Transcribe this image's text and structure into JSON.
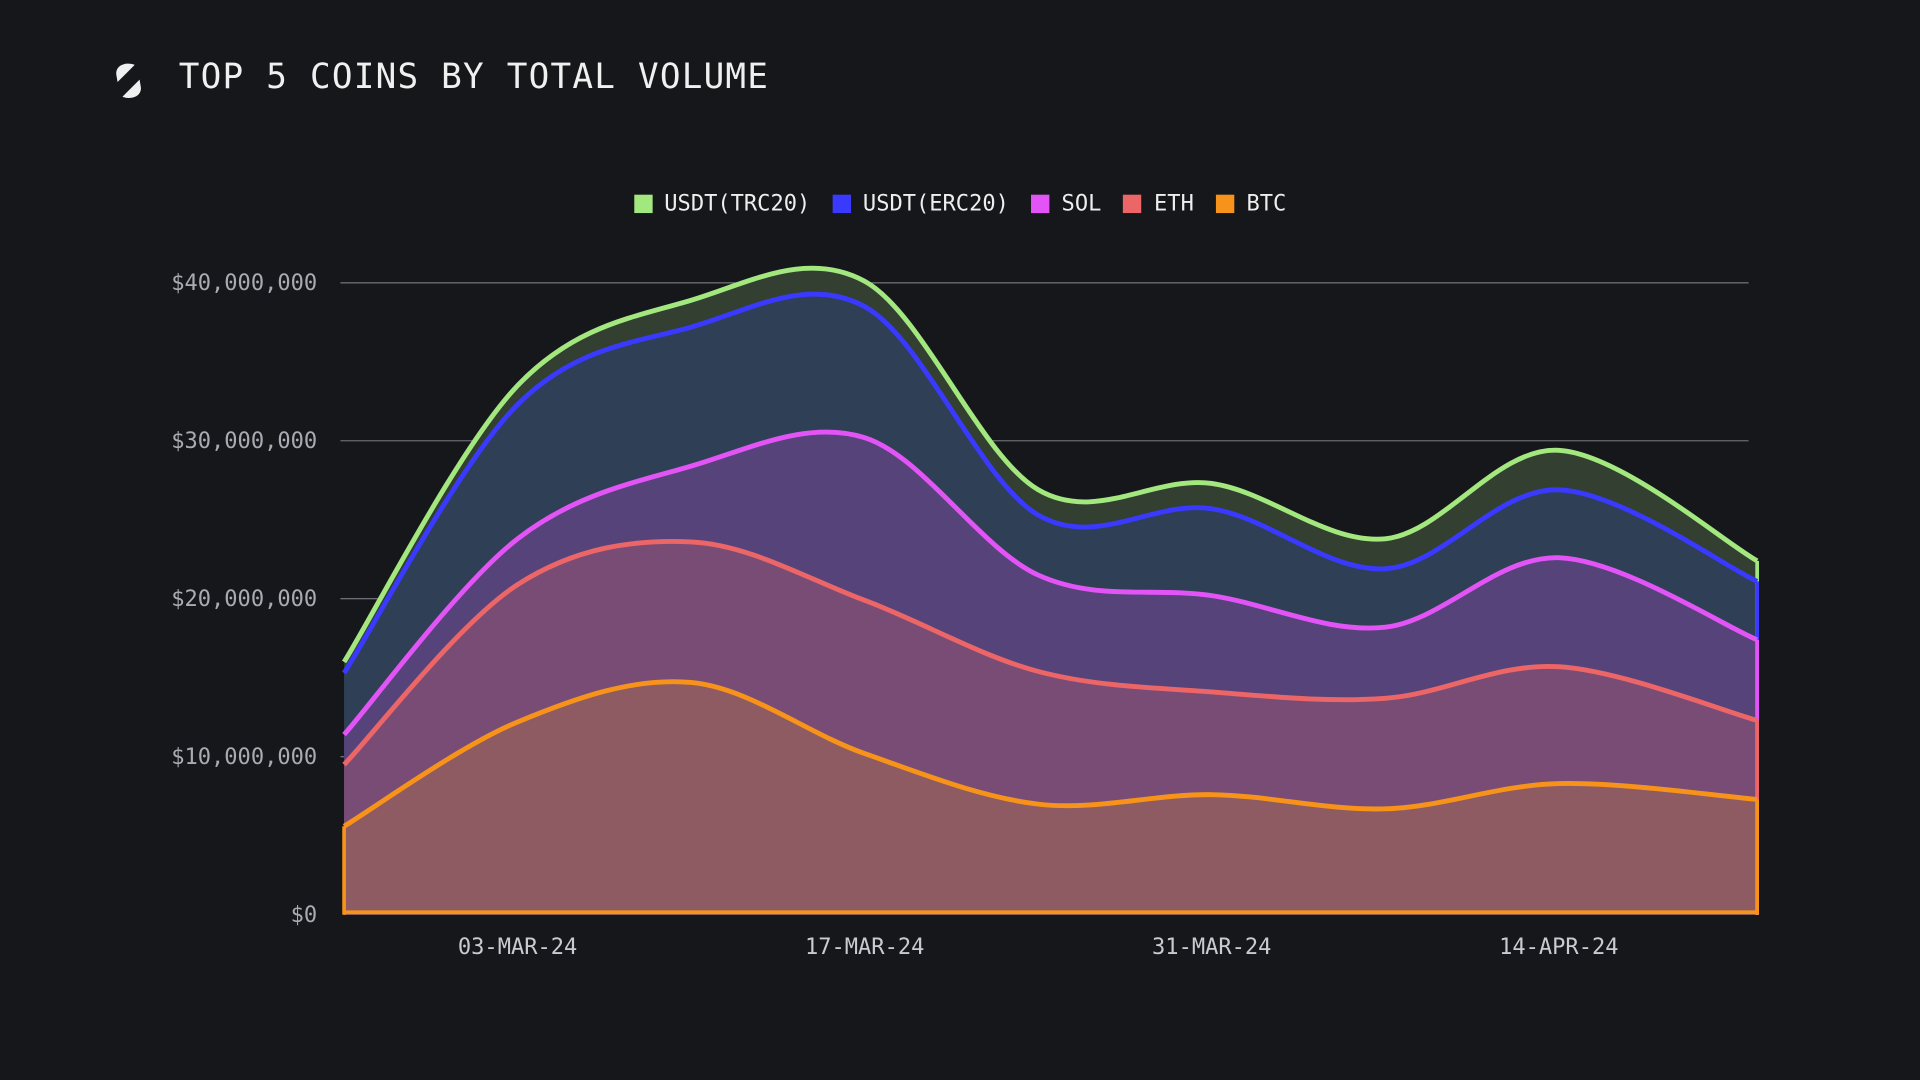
{
  "header": {
    "title": "TOP 5 COINS BY TOTAL VOLUME",
    "logo_icon": "s-slash-logo-icon"
  },
  "chart_data": {
    "type": "area",
    "stacked": true,
    "smooth": true,
    "title": "TOP 5 COINS BY TOTAL VOLUME",
    "legend_position": "top",
    "grid": true,
    "x": [
      "2024-02-25",
      "2024-03-03",
      "2024-03-10",
      "2024-03-17",
      "2024-03-24",
      "2024-03-31",
      "2024-04-07",
      "2024-04-14",
      "2024-04-22"
    ],
    "xlim": [
      "2024-02-25",
      "2024-04-22"
    ],
    "x_ticks": [
      {
        "date": "2024-03-03",
        "label": "03-MAR-24"
      },
      {
        "date": "2024-03-17",
        "label": "17-MAR-24"
      },
      {
        "date": "2024-03-31",
        "label": "31-MAR-24"
      },
      {
        "date": "2024-04-14",
        "label": "14-APR-24"
      }
    ],
    "ylim": [
      0,
      40000000
    ],
    "y_ticks": [
      {
        "value": 0,
        "label": "$0"
      },
      {
        "value": 10000000,
        "label": "$10,000,000"
      },
      {
        "value": 20000000,
        "label": "$20,000,000"
      },
      {
        "value": 30000000,
        "label": "$30,000,000"
      },
      {
        "value": 40000000,
        "label": "$40,000,000"
      }
    ],
    "series": [
      {
        "name": "BTC",
        "color": "#f7931a",
        "fill": "#8d5b61",
        "values": [
          5600000,
          12200000,
          14700000,
          10200000,
          7000000,
          7600000,
          6700000,
          8300000,
          7300000
        ]
      },
      {
        "name": "ETH",
        "color": "#ec6567",
        "fill": "#784c75",
        "values": [
          3900000,
          8700000,
          8900000,
          9700000,
          8400000,
          6500000,
          7000000,
          7400000,
          5000000
        ]
      },
      {
        "name": "SOL",
        "color": "#e254f5",
        "fill": "#55437a",
        "values": [
          1900000,
          2900000,
          4800000,
          10300000,
          6100000,
          6100000,
          4500000,
          6900000,
          5100000
        ]
      },
      {
        "name": "USDT(ERC20)",
        "color": "#3a3aff",
        "fill": "#2f3f56",
        "values": [
          3900000,
          8500000,
          8800000,
          8300000,
          3800000,
          5500000,
          3700000,
          4300000,
          3700000
        ]
      },
      {
        "name": "USDT(TRC20)",
        "color": "#a3e77f",
        "fill": "#323f31",
        "values": [
          700000,
          1200000,
          1700000,
          1600000,
          1600000,
          1600000,
          1900000,
          2500000,
          1300000
        ]
      }
    ],
    "legend_order": [
      "USDT(TRC20)",
      "USDT(ERC20)",
      "SOL",
      "ETH",
      "BTC"
    ]
  }
}
